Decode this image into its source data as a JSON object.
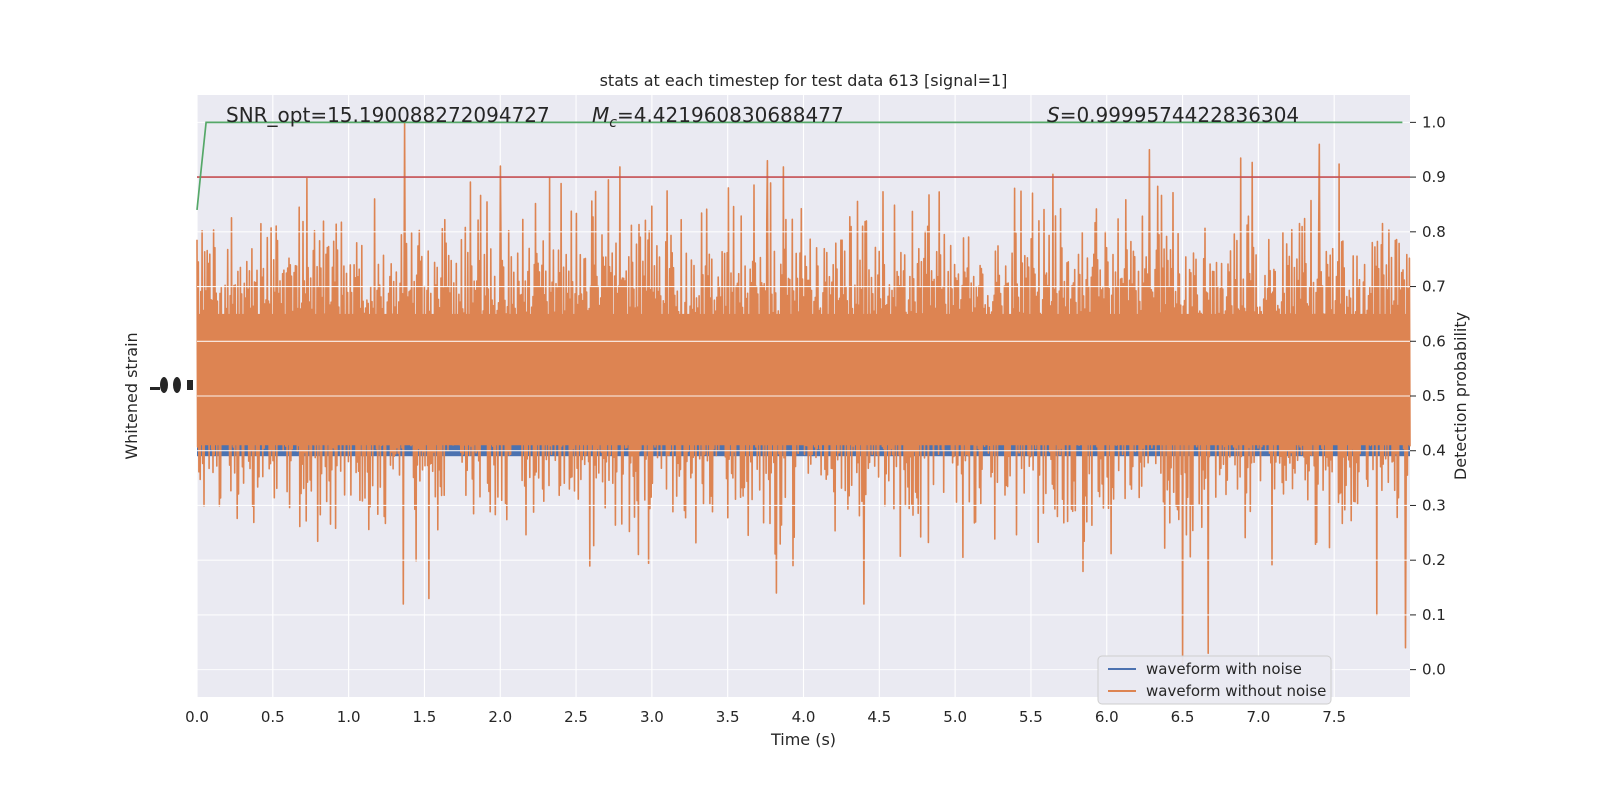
{
  "chart_data": {
    "type": "line",
    "title": "stats at each timestep for test data 613 [signal=1]",
    "xlabel": "Time (s)",
    "ylabel_left": "Whitened strain",
    "ylabel_right": "Detection probability",
    "xlim": [
      0.0,
      8.0
    ],
    "ylim_right": [
      -0.05,
      1.05
    ],
    "x_ticks": [
      "0.0",
      "0.5",
      "1.0",
      "1.5",
      "2.0",
      "2.5",
      "3.0",
      "3.5",
      "4.0",
      "4.5",
      "5.0",
      "5.5",
      "6.0",
      "6.5",
      "7.0",
      "7.5"
    ],
    "x_tick_values": [
      0.0,
      0.5,
      1.0,
      1.5,
      2.0,
      2.5,
      3.0,
      3.5,
      4.0,
      4.5,
      5.0,
      5.5,
      6.0,
      6.5,
      7.0,
      7.5
    ],
    "y_ticks_right": [
      "0.0",
      "0.1",
      "0.2",
      "0.3",
      "0.4",
      "0.5",
      "0.6",
      "0.7",
      "0.8",
      "0.9",
      "1.0"
    ],
    "y_tick_values_right": [
      0.0,
      0.1,
      0.2,
      0.3,
      0.4,
      0.5,
      0.6,
      0.7,
      0.8,
      0.9,
      1.0
    ],
    "grid": true,
    "legend_position": "lower-right",
    "annotations": {
      "snr": "SNR_opt=15.190088272094727",
      "mc_symbol": "M",
      "mc_subscript": "c",
      "mc_value": "=4.421960830688477",
      "s_symbol": "S",
      "s_value": "=0.9999574422836304"
    },
    "series": [
      {
        "name": "waveform with noise",
        "color": "#4c72b0",
        "band_center": 0.5,
        "band_halfwidth": 0.11
      },
      {
        "name": "waveform without noise",
        "color": "#dd8452",
        "noise_center": 0.55,
        "noise_spread": 0.17
      },
      {
        "color": "#55a868",
        "points": [
          [
            0.0,
            0.84
          ],
          [
            0.03,
            0.92
          ],
          [
            0.06,
            1.0
          ],
          [
            0.1,
            1.0
          ],
          [
            0.2,
            1.0
          ],
          [
            7.95,
            1.0
          ]
        ]
      },
      {
        "color": "#c44e52",
        "threshold": 0.9
      }
    ],
    "notable_peaks": [
      {
        "x": 1.37,
        "y": 1.0
      },
      {
        "x": 2.0,
        "y": 0.92
      },
      {
        "x": 3.76,
        "y": 0.93
      },
      {
        "x": 6.28,
        "y": 0.95
      },
      {
        "x": 7.4,
        "y": 0.96
      }
    ],
    "notable_troughs": [
      {
        "x": 6.5,
        "y": 0.01
      },
      {
        "x": 6.67,
        "y": 0.03
      },
      {
        "x": 7.97,
        "y": 0.04
      },
      {
        "x": 7.78,
        "y": 0.1
      },
      {
        "x": 4.4,
        "y": 0.12
      },
      {
        "x": 1.36,
        "y": 0.12
      },
      {
        "x": 1.53,
        "y": 0.13
      },
      {
        "x": 3.82,
        "y": 0.14
      }
    ]
  }
}
